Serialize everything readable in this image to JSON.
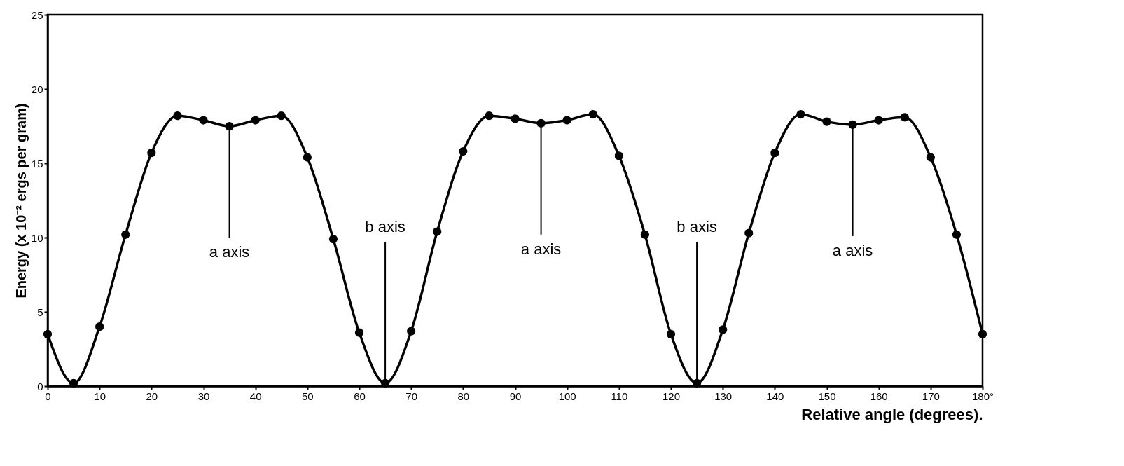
{
  "chart_data": {
    "type": "line",
    "xlabel": "Relative angle (degrees).",
    "ylabel": "Energy (x 10⁻² ergs per gram)",
    "x": [
      0,
      5,
      10,
      15,
      20,
      25,
      30,
      35,
      40,
      45,
      50,
      55,
      60,
      65,
      70,
      75,
      80,
      85,
      90,
      95,
      100,
      105,
      110,
      115,
      120,
      125,
      130,
      135,
      140,
      145,
      150,
      155,
      160,
      165,
      170,
      175,
      180
    ],
    "series": [
      {
        "color": "#000000",
        "values": [
          3.5,
          0.2,
          4.0,
          10.2,
          15.7,
          18.2,
          17.9,
          17.5,
          17.9,
          18.2,
          15.4,
          9.9,
          3.6,
          0.2,
          3.7,
          10.4,
          15.8,
          18.2,
          18.0,
          17.7,
          17.9,
          18.3,
          15.5,
          10.2,
          3.5,
          0.2,
          3.8,
          10.3,
          15.7,
          18.3,
          17.8,
          17.6,
          17.9,
          18.1,
          15.4,
          10.2,
          3.5
        ]
      }
    ],
    "xlim": [
      0,
      180
    ],
    "xticks": [
      0,
      10,
      20,
      30,
      40,
      50,
      60,
      70,
      80,
      90,
      100,
      110,
      120,
      130,
      140,
      150,
      160,
      170,
      {
        "value": 180,
        "label": "180°"
      }
    ],
    "ylim": [
      0,
      25
    ],
    "yticks": [
      0,
      5,
      10,
      15,
      20,
      25
    ],
    "marker": "circle",
    "grid": false,
    "annotations": [
      {
        "text": "a axis",
        "x": 35,
        "y": 17.5
      },
      {
        "text": "b axis",
        "x": 65,
        "y": 0.2
      },
      {
        "text": "a axis",
        "x": 95,
        "y": 17.7
      },
      {
        "text": "b axis",
        "x": 125,
        "y": 0.2
      },
      {
        "text": "a axis",
        "x": 155,
        "y": 17.6
      }
    ]
  }
}
